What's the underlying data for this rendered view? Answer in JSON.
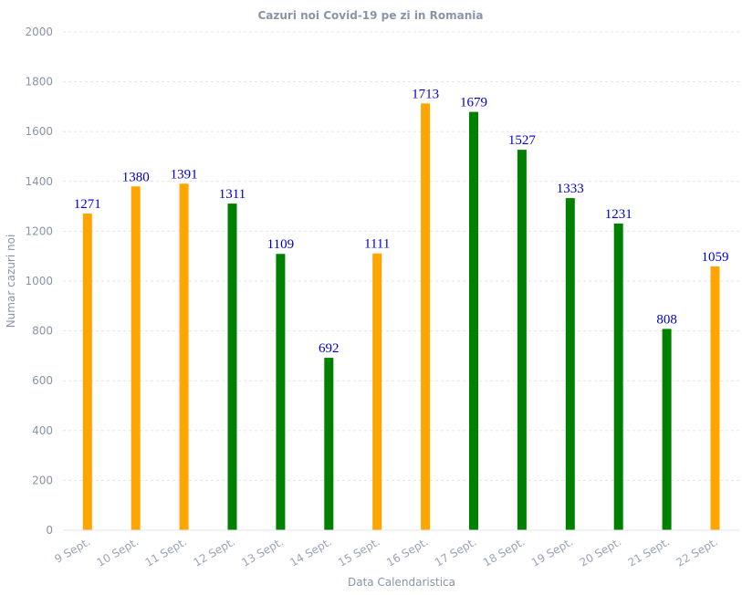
{
  "chart_data": {
    "type": "bar",
    "title": "Cazuri noi Covid-19 pe zi in Romania",
    "xlabel": "Data Calendaristica",
    "ylabel": "Numar cazuri noi",
    "ylim": [
      0,
      2000
    ],
    "yticks": [
      0,
      200,
      400,
      600,
      800,
      1000,
      1200,
      1400,
      1600,
      1800,
      2000
    ],
    "grid": true,
    "categories": [
      "9 Sept.",
      "10 Sept.",
      "11 Sept.",
      "12 Sept.",
      "13 Sept.",
      "14 Sept.",
      "15 Sept.",
      "16 Sept.",
      "17 Sept.",
      "18 Sept.",
      "19 Sept.",
      "20 Sept.",
      "21 Sept.",
      "22 Sept."
    ],
    "values": [
      1271,
      1380,
      1391,
      1311,
      1109,
      692,
      1111,
      1713,
      1679,
      1527,
      1333,
      1231,
      808,
      1059
    ],
    "bar_colors": [
      "#ffa500",
      "#ffa500",
      "#ffa500",
      "#008000",
      "#008000",
      "#008000",
      "#ffa500",
      "#ffa500",
      "#008000",
      "#008000",
      "#008000",
      "#008000",
      "#008000",
      "#ffa500"
    ],
    "data_label_color": "#0000cd"
  }
}
